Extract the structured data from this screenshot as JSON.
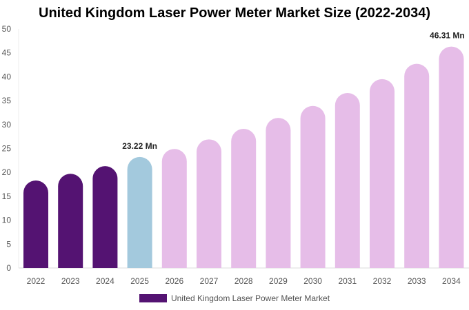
{
  "chart_data": {
    "type": "bar",
    "title": "United Kingdom Laser Power Meter Market Size (2022-2034)",
    "categories": [
      "2022",
      "2023",
      "2024",
      "2025",
      "2026",
      "2027",
      "2028",
      "2029",
      "2030",
      "2031",
      "2032",
      "2033",
      "2034"
    ],
    "series": [
      {
        "name": "United Kingdom Laser Power Meter Market",
        "values": [
          18.3,
          19.7,
          21.3,
          23.22,
          24.9,
          26.9,
          29.1,
          31.4,
          33.9,
          36.6,
          39.5,
          42.7,
          46.31
        ]
      }
    ],
    "data_labels": {
      "3": "23.22 Mn",
      "12": "46.31 Mn"
    },
    "bar_colors": [
      "#541372",
      "#541372",
      "#541372",
      "#a3c9dd",
      "#e6bde8",
      "#e6bde8",
      "#e6bde8",
      "#e6bde8",
      "#e6bde8",
      "#e6bde8",
      "#e6bde8",
      "#e6bde8",
      "#e6bde8"
    ],
    "legend_color": "#541372",
    "ylim": [
      0,
      50
    ],
    "yticks": [
      0,
      5,
      10,
      15,
      20,
      25,
      30,
      35,
      40,
      45,
      50
    ],
    "xlabel": "",
    "ylabel": "",
    "grid": false,
    "legend_position": "bottom"
  }
}
